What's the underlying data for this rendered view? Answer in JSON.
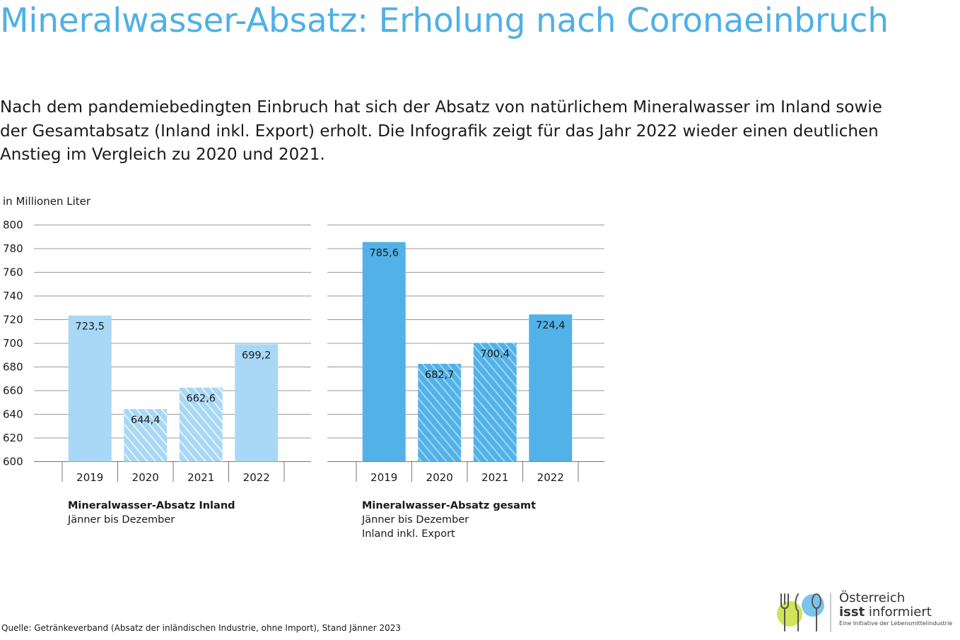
{
  "title": "Mineralwasser-Absatz: Erholung nach Coronaeinbruch",
  "intro": "Nach dem pandemiebedingten Einbruch hat sich der Absatz von natürlichem Mineralwasser im Inland sowie der Gesamtabsatz (Inland inkl. Export) erholt. Die Infografik zeigt für das Jahr 2022 wieder einen deutlichen Anstieg im Vergleich zu 2020 und 2021.",
  "unit_label": "in Millionen Liter",
  "y_ticks": [
    "800",
    "780",
    "760",
    "740",
    "720",
    "700",
    "680",
    "660",
    "640",
    "620",
    "600"
  ],
  "colors": {
    "title": "#4fb0e6",
    "inland_bar": "#a8d8f5",
    "gesamt_bar": "#52b2e8",
    "grid": "#9a9a9a"
  },
  "chart_data": [
    {
      "type": "bar",
      "title": "Mineralwasser-Absatz Inland",
      "subtitle": [
        "Jänner bis Dezember"
      ],
      "ylabel": "in Millionen Liter",
      "ylim": [
        600,
        800
      ],
      "grid": true,
      "categories": [
        "2019",
        "2020",
        "2021",
        "2022"
      ],
      "values": [
        723.5,
        644.4,
        662.6,
        699.2
      ],
      "value_labels": [
        "723,5",
        "644,4",
        "662,6",
        "699,2"
      ],
      "hatched": [
        false,
        true,
        true,
        false
      ]
    },
    {
      "type": "bar",
      "title": "Mineralwasser-Absatz gesamt",
      "subtitle": [
        "Jänner bis Dezember",
        "Inland inkl. Export"
      ],
      "ylabel": "in Millionen Liter",
      "ylim": [
        600,
        800
      ],
      "grid": true,
      "categories": [
        "2019",
        "2020",
        "2021",
        "2022"
      ],
      "values": [
        785.6,
        682.7,
        700.4,
        724.4
      ],
      "value_labels": [
        "785,6",
        "682,7",
        "700,4",
        "724,4"
      ],
      "hatched": [
        false,
        true,
        true,
        false
      ]
    }
  ],
  "source": "Quelle: Getränkeverband (Absatz der inländischen Industrie, ohne Import), Stand Jänner 2023",
  "logo": {
    "line1": "Österreich",
    "line2_bold": "isst",
    "line2_rest": " informiert",
    "line3": "Eine Initiative der Lebensmittelindustrie",
    "icon": "cutlery-icon"
  }
}
